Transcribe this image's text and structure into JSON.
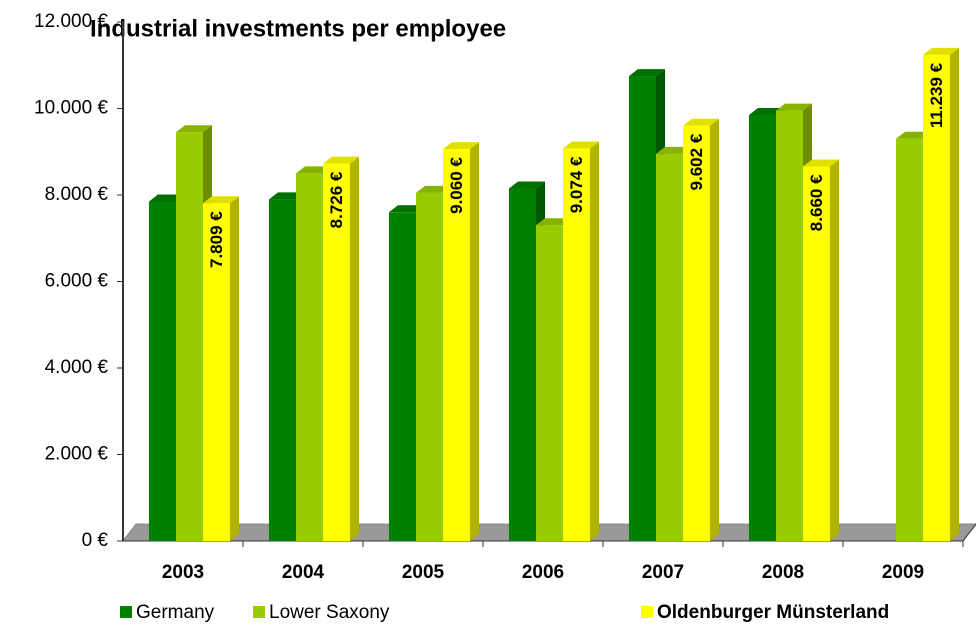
{
  "chart_data": {
    "type": "bar3d",
    "title": "Industrial investments per employee",
    "categories": [
      "2003",
      "2004",
      "2005",
      "2006",
      "2007",
      "2008",
      "2009"
    ],
    "series": [
      {
        "name": "Germany",
        "color": "#008000",
        "values": [
          7850,
          7900,
          7600,
          8150,
          10750,
          9850,
          null
        ]
      },
      {
        "name": "Lower Saxony",
        "color": "#99cc00",
        "values": [
          9450,
          8500,
          8050,
          7300,
          8950,
          9950,
          9300
        ]
      },
      {
        "name": "Oldenburger Münsterland",
        "color": "#ffff00",
        "values": [
          7809,
          8726,
          9060,
          9074,
          9602,
          8660,
          11239
        ],
        "value_labels": [
          "7.809 €",
          "8.726 €",
          "9.060 €",
          "9.074 €",
          "9.602 €",
          "8.660 €",
          "11.239 €"
        ]
      }
    ],
    "ylim": [
      0,
      12000
    ],
    "yticks": [
      {
        "value": 0,
        "label": "0 €"
      },
      {
        "value": 2000,
        "label": "2.000 €"
      },
      {
        "value": 4000,
        "label": "4.000 €"
      },
      {
        "value": 6000,
        "label": "6.000 €"
      },
      {
        "value": 8000,
        "label": "8.000 €"
      },
      {
        "value": 10000,
        "label": "10.000 €"
      },
      {
        "value": 12000,
        "label": "12.000 €"
      }
    ],
    "legend": "bottom"
  }
}
